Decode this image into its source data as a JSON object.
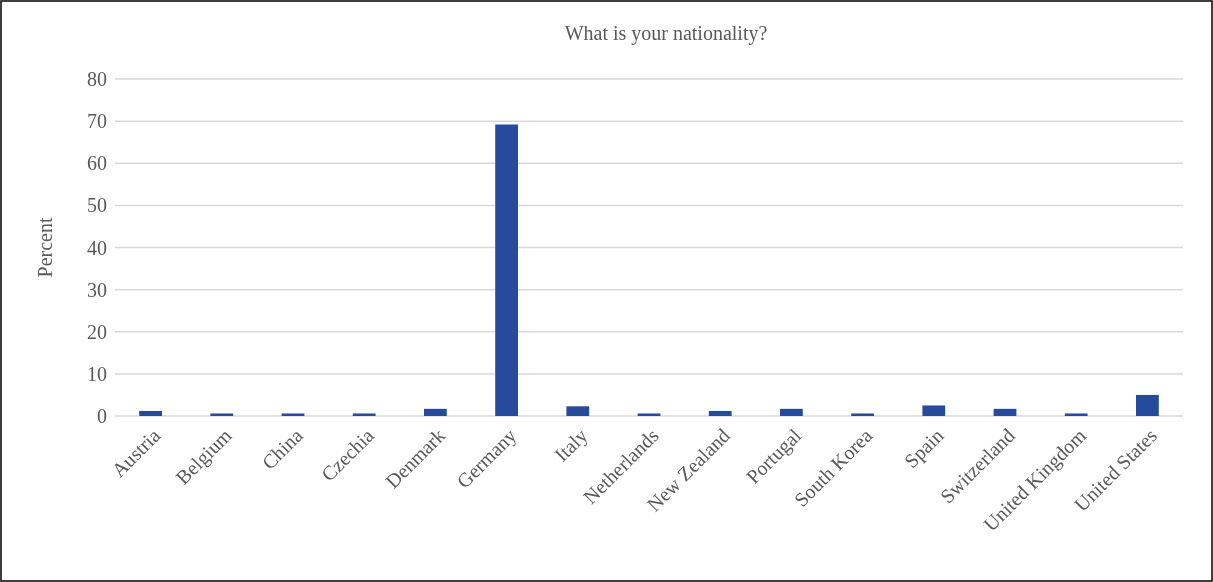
{
  "chart_data": {
    "type": "bar",
    "title": "What is your nationality?",
    "ylabel": "Percent",
    "categories": [
      "Austria",
      "Belgium",
      "China",
      "Czechia",
      "Denmark",
      "Germany",
      "Italy",
      "Netherlands",
      "New Zealand",
      "Portugal",
      "South Korea",
      "Spain",
      "Switzerland",
      "United Kingdom",
      "United States"
    ],
    "values": [
      1.2,
      0.6,
      0.6,
      0.6,
      1.7,
      69.2,
      2.3,
      0.6,
      1.2,
      1.7,
      0.6,
      2.5,
      1.7,
      0.6,
      5.0
    ],
    "color": "#264b9a",
    "ylim": [
      0,
      80
    ],
    "yticks": [
      0,
      10,
      20,
      30,
      40,
      50,
      60,
      70,
      80
    ],
    "grid": "y"
  }
}
